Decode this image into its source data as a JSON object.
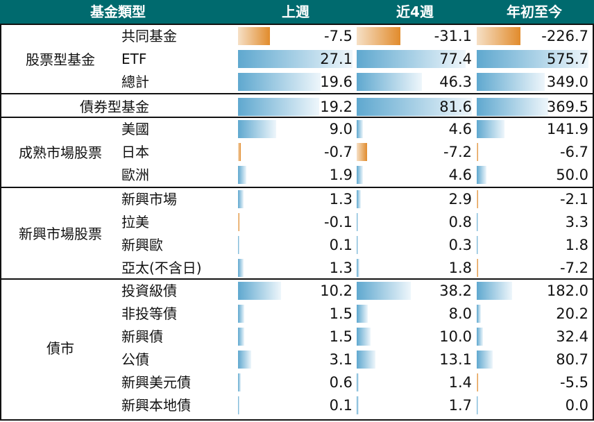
{
  "headers": [
    "基金類型",
    "上週",
    "近4週",
    "年初至今"
  ],
  "groups": [
    {
      "name": "股票型基金",
      "rows": [
        {
          "label": "共同基金",
          "values": [
            -7.5,
            -31.1,
            -226.7
          ]
        },
        {
          "label": "ETF",
          "values": [
            27.1,
            77.4,
            575.7
          ]
        },
        {
          "label": "總計",
          "values": [
            19.6,
            46.3,
            349.0
          ]
        }
      ]
    },
    {
      "name": "",
      "rows": [
        {
          "label": "債券型基金",
          "values": [
            19.2,
            81.6,
            369.5
          ]
        }
      ]
    },
    {
      "name": "成熟市場股票",
      "rows": [
        {
          "label": "美國",
          "values": [
            9.0,
            4.6,
            141.9
          ]
        },
        {
          "label": "日本",
          "values": [
            -0.7,
            -7.2,
            -6.7
          ]
        },
        {
          "label": "歐洲",
          "values": [
            1.9,
            4.6,
            50.0
          ]
        }
      ]
    },
    {
      "name": "新興市場股票",
      "rows": [
        {
          "label": "新興市場",
          "values": [
            1.3,
            2.9,
            -2.1
          ]
        },
        {
          "label": "拉美",
          "values": [
            -0.1,
            0.8,
            3.3
          ]
        },
        {
          "label": "新興歐",
          "values": [
            0.1,
            0.3,
            1.8
          ]
        },
        {
          "label": "亞太(不含日)",
          "values": [
            1.3,
            1.8,
            -7.2
          ]
        }
      ]
    },
    {
      "name": "債市",
      "rows": [
        {
          "label": "投資級債",
          "values": [
            10.2,
            38.2,
            182.0
          ]
        },
        {
          "label": "非投等債",
          "values": [
            1.5,
            8.0,
            20.2
          ]
        },
        {
          "label": "新興債",
          "values": [
            1.5,
            10.0,
            32.4
          ]
        },
        {
          "label": "公債",
          "values": [
            3.1,
            13.1,
            80.7
          ]
        },
        {
          "label": "新興美元債",
          "values": [
            0.6,
            1.4,
            -5.5
          ]
        },
        {
          "label": "新興本地債",
          "values": [
            0.1,
            1.7,
            0.0
          ]
        }
      ]
    }
  ],
  "colors": {
    "header_bg": "#006a6e",
    "positive_bar": "#5fa8cf",
    "negative_bar": "#e18b2c"
  },
  "chart_data": {
    "type": "table",
    "columns": [
      "上週",
      "近4週",
      "年初至今"
    ]
  }
}
